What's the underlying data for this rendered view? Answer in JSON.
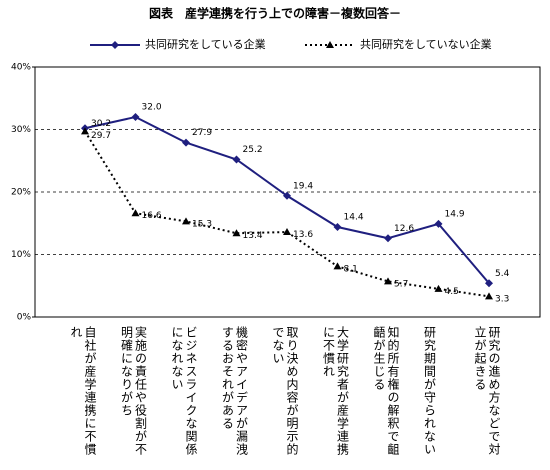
{
  "chart_data": {
    "type": "line",
    "title": "図表　産学連携を行う上での障害－複数回答－",
    "categories": [
      "自社が産学連携に不慣れ",
      "実施の責任や役割が不明確になりがち",
      "ビジネスライクな関係になれない",
      "機密やアイデアが漏洩するおそれがある",
      "取り決め内容が明示的でない",
      "大学研究者が産学連携に不慣れ",
      "知的所有権の解釈で齟齬が生じる",
      "研究期間が守られない",
      "研究の進め方などで対立が起きる"
    ],
    "series": [
      {
        "name": "共同研究をしている企業",
        "color": "#1f1f7f",
        "marker": "diamond",
        "dash": false,
        "values": [
          30.2,
          32.0,
          27.9,
          25.2,
          19.4,
          14.4,
          12.6,
          14.9,
          5.4
        ],
        "value_labels": [
          "30.2",
          "32.0",
          "27.9",
          "25.2",
          "19.4",
          "14.4",
          "12.6",
          "14.9",
          "5.4"
        ]
      },
      {
        "name": "共同研究をしていない企業",
        "color": "#000000",
        "marker": "triangle",
        "dash": true,
        "values": [
          29.7,
          16.6,
          15.3,
          13.4,
          13.6,
          8.1,
          5.7,
          4.5,
          3.3
        ],
        "value_labels": [
          "29.7",
          "16.6",
          "15.3",
          "13.4",
          "13.6",
          "8.1",
          "5.7",
          "4.5",
          "3.3"
        ]
      }
    ],
    "ylim": [
      0,
      40
    ],
    "yticks": [
      {
        "value": 0,
        "label": "0%"
      },
      {
        "value": 10,
        "label": "10%"
      },
      {
        "value": 20,
        "label": "20%"
      },
      {
        "value": 30,
        "label": "30%"
      },
      {
        "value": 40,
        "label": "40%"
      }
    ],
    "grid": true
  }
}
